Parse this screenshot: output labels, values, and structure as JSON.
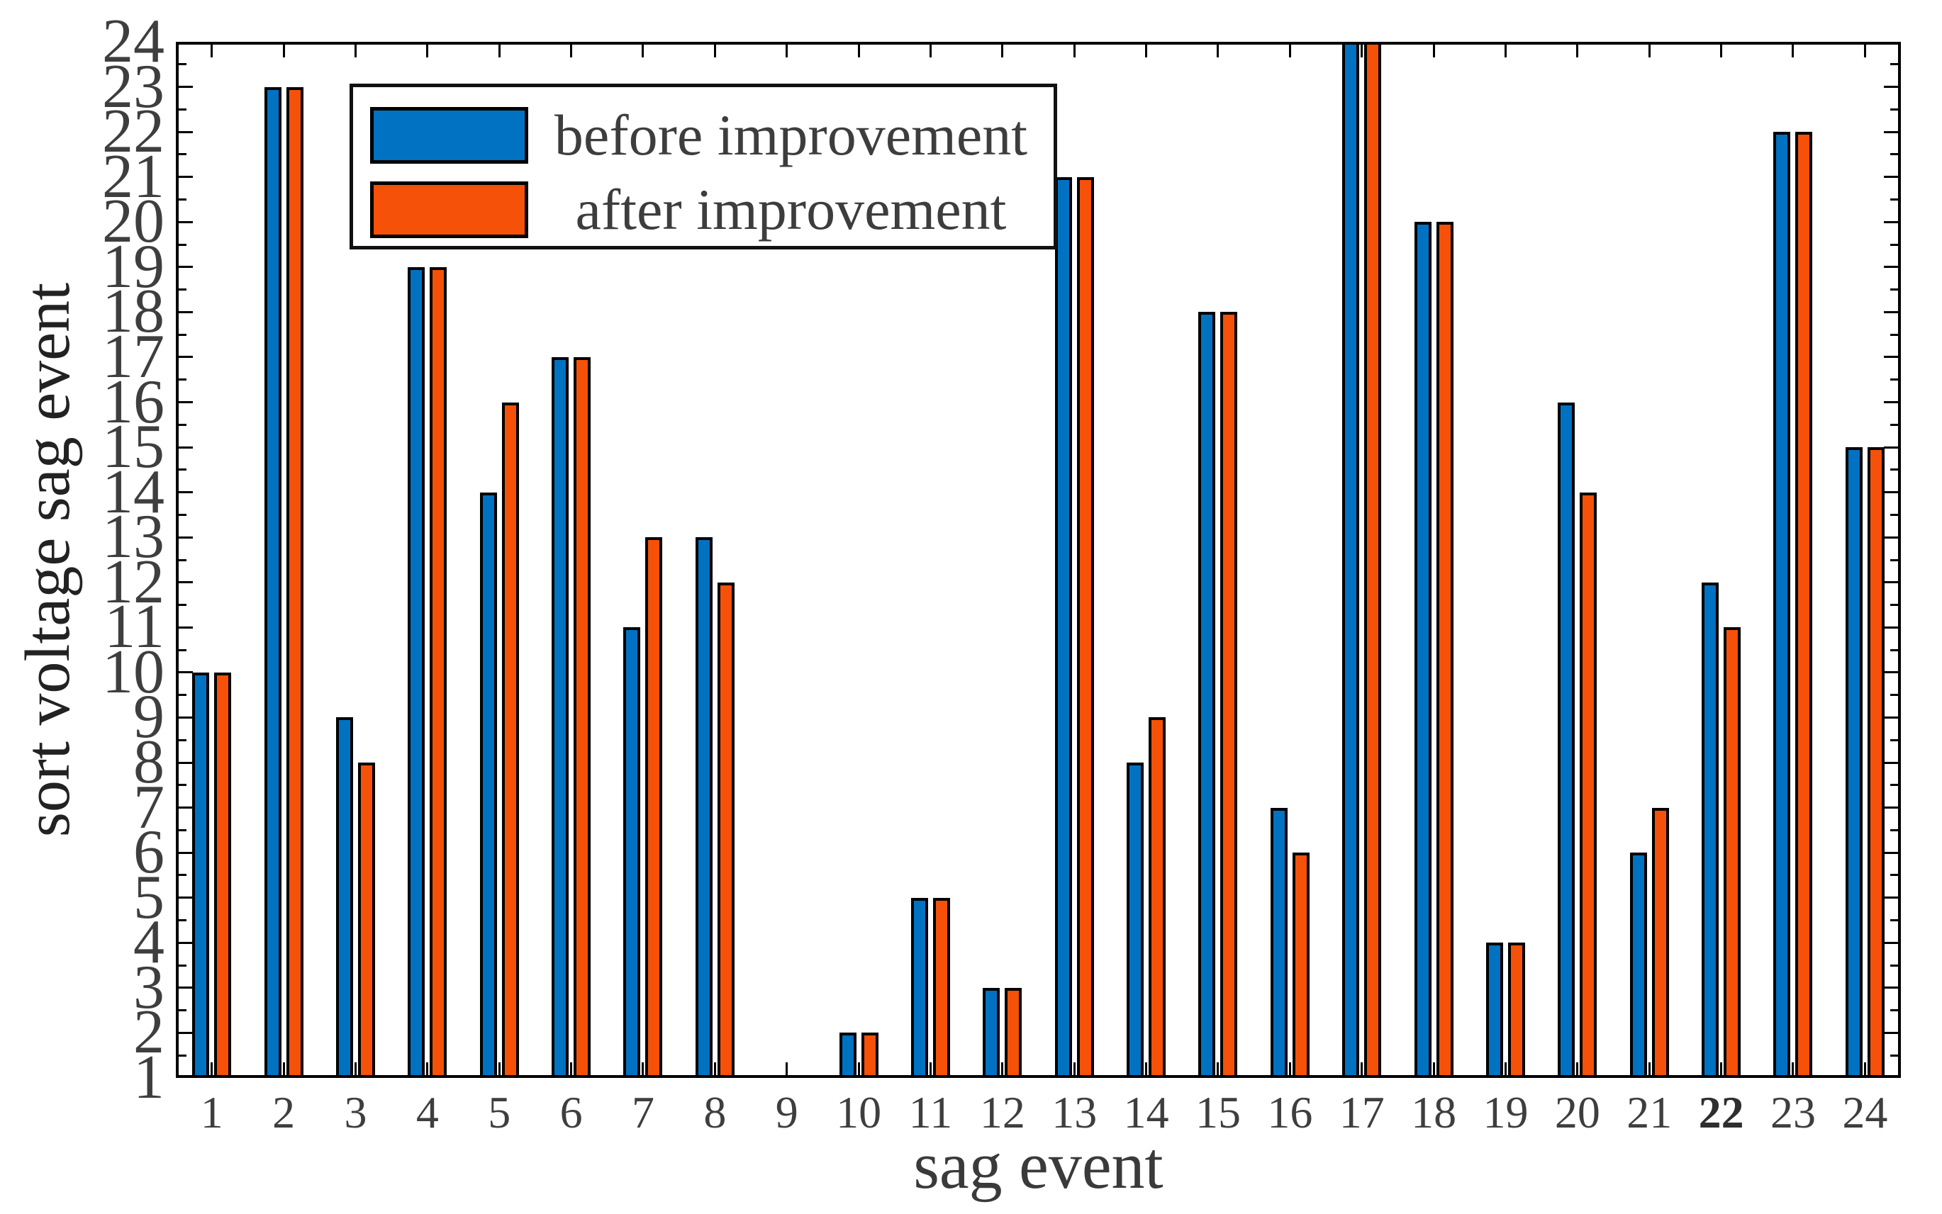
{
  "figure": {
    "xlabel": "sag event",
    "ylabel": "sort voltage sag event",
    "legend": {
      "items": [
        {
          "label": "before improvement",
          "color": "#0072C1"
        },
        {
          "label": "after improvement",
          "color": "#F55109"
        }
      ]
    },
    "colors": {
      "before": "#0072C1",
      "after": "#F55109",
      "axis": "#000000",
      "tick_text": "#3e3e3e",
      "title_text": "#3a3a3a",
      "background": "#ffffff"
    },
    "bold_xtick_label": "22"
  },
  "chart_data": {
    "type": "bar",
    "title": "",
    "xlabel": "sag event",
    "ylabel": "sort voltage sag event",
    "categories": [
      1,
      2,
      3,
      4,
      5,
      6,
      7,
      8,
      9,
      10,
      11,
      12,
      13,
      14,
      15,
      16,
      17,
      18,
      19,
      20,
      21,
      22,
      23,
      24
    ],
    "series": [
      {
        "name": "before improvement",
        "color": "#0072C1",
        "values": [
          10,
          23,
          9,
          19,
          14,
          17,
          11,
          13,
          1,
          2,
          5,
          3,
          21,
          8,
          18,
          7,
          24,
          20,
          4,
          16,
          6,
          12,
          22,
          15
        ]
      },
      {
        "name": "after improvement",
        "color": "#F55109",
        "values": [
          10,
          23,
          8,
          19,
          16,
          17,
          13,
          12,
          1,
          2,
          5,
          3,
          21,
          9,
          18,
          6,
          24,
          20,
          4,
          14,
          7,
          11,
          22,
          15
        ]
      }
    ],
    "ylim": [
      1,
      24
    ],
    "yticks": [
      1,
      2,
      3,
      4,
      5,
      6,
      7,
      8,
      9,
      10,
      11,
      12,
      13,
      14,
      15,
      16,
      17,
      18,
      19,
      20,
      21,
      22,
      23,
      24
    ],
    "y_minor_ticks_every": 0.5,
    "baseline_value": 1,
    "grid": false,
    "legend_position": "inside-top-left",
    "tick_direction": "in",
    "box": true
  }
}
